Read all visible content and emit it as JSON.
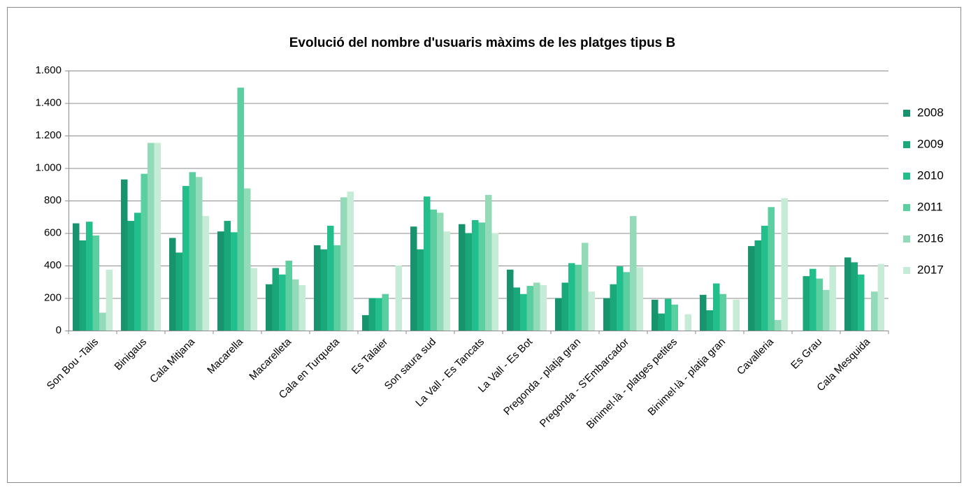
{
  "chart_data": {
    "type": "bar",
    "title": "Evolució del nombre d'usuaris màxims de les platges tipus B",
    "categories": [
      "Son Bou -Talis",
      "Binigaus",
      "Cala Mitjana",
      "Macarella",
      "Macarelleta",
      "Cala en Turqueta",
      "Es Talaier",
      "Son saura sud",
      "La Vall - Es Tancats",
      "La Vall - Es Bot",
      "Pregonda - platja gran",
      "Pregonda - S'Embarcador",
      "Binimel·là - platges petites",
      "Binimel·là - platja gran",
      "Cavalleria",
      "Es Grau",
      "Cala Mesquida"
    ],
    "series": [
      {
        "name": "2008",
        "color": "#17936d",
        "values": [
          660,
          930,
          570,
          610,
          285,
          525,
          95,
          640,
          655,
          375,
          200,
          200,
          190,
          220,
          520,
          null,
          450
        ]
      },
      {
        "name": "2009",
        "color": "#1aa87a",
        "values": [
          555,
          675,
          480,
          675,
          385,
          500,
          200,
          500,
          600,
          265,
          295,
          285,
          105,
          125,
          555,
          335,
          420
        ]
      },
      {
        "name": "2010",
        "color": "#22be8c",
        "values": [
          670,
          725,
          890,
          605,
          345,
          645,
          200,
          825,
          680,
          225,
          415,
          395,
          195,
          290,
          645,
          380,
          345
        ]
      },
      {
        "name": "2011",
        "color": "#5ccfa0",
        "values": [
          585,
          965,
          975,
          1495,
          430,
          525,
          225,
          745,
          665,
          275,
          405,
          360,
          160,
          225,
          760,
          320,
          null
        ]
      },
      {
        "name": "2016",
        "color": "#93dbb8",
        "values": [
          110,
          1155,
          945,
          875,
          315,
          820,
          null,
          725,
          835,
          295,
          540,
          705,
          null,
          null,
          65,
          250,
          240
        ]
      },
      {
        "name": "2017",
        "color": "#c6ecd8",
        "values": [
          375,
          1155,
          705,
          385,
          280,
          855,
          400,
          610,
          600,
          280,
          240,
          390,
          100,
          190,
          815,
          395,
          410
        ]
      }
    ],
    "ylim": [
      0,
      1600
    ],
    "yticks": [
      0,
      200,
      400,
      600,
      800,
      {
        "value": 1000,
        "label": "1.000"
      },
      {
        "value": 1200,
        "label": "1.200"
      },
      {
        "value": 1400,
        "label": "1.400"
      },
      {
        "value": 1600,
        "label": "1.600"
      }
    ],
    "grid": true,
    "legend": "right"
  }
}
